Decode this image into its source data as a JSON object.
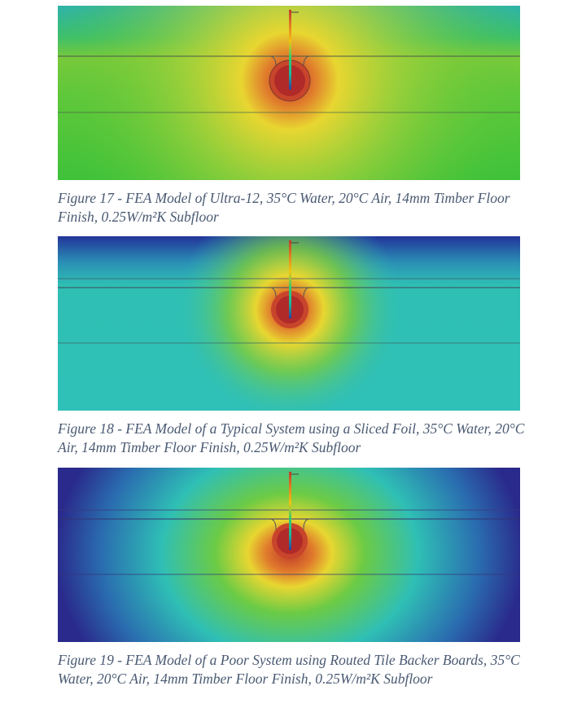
{
  "figures": [
    {
      "caption": "Figure 17 - FEA Model of Ultra-12, 35°C Water, 20°C Air, 14mm Timber Floor Finish, 0.25W/m²K Subfloor",
      "colors": {
        "background": "#38c23a",
        "top": "#2fb5a0",
        "hot": "#b83028",
        "mid": "#e8d631"
      }
    },
    {
      "caption": "Figure 18 - FEA Model of a Typical System using a Sliced Foil, 35°C Water, 20°C Air, 14mm Timber Floor Finish, 0.25W/m²K Subfloor",
      "colors": {
        "background": "#2fbfb8",
        "top": "#233a9e",
        "hot": "#b83028",
        "mid": "#e8d631"
      }
    },
    {
      "caption": "Figure 19 - FEA Model of a Poor System using Routed Tile Backer Boards, 35°C Water, 20°C Air, 14mm Timber Floor Finish, 0.25W/m²K Subfloor",
      "colors": {
        "background": "#2a2a8c",
        "top": "#2a2a8c",
        "hot": "#b83028",
        "mid": "#e8d631"
      }
    }
  ]
}
